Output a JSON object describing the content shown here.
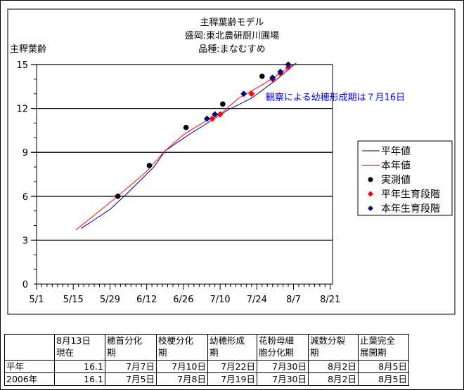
{
  "chart_data": {
    "type": "line",
    "title": [
      "主稈葉齢モデル",
      "盛岡:東北農研厨川圃場",
      "品種:まなむすめ"
    ],
    "ylabel": "主稈葉齢",
    "xlabel": "",
    "ylim": [
      0,
      15
    ],
    "yticks": [
      0,
      3,
      6,
      9,
      12,
      15
    ],
    "xticks": [
      "5/1",
      "5/15",
      "5/29",
      "6/12",
      "6/26",
      "7/10",
      "7/24",
      "8/7",
      "8/21"
    ],
    "grid": "horizontal major",
    "legend_placement": "right",
    "annotation": "観察による幼穂形成期は７月16日",
    "series": [
      {
        "name": "平年値",
        "kind": "line",
        "color": "#000080",
        "points": [
          [
            "5/18",
            3.8
          ],
          [
            "5/29",
            5.1
          ],
          [
            "6/4",
            6.1
          ],
          [
            "6/15",
            8.05
          ],
          [
            "6/19",
            9.1
          ],
          [
            "6/28",
            10.2
          ],
          [
            "7/6",
            11.1
          ],
          [
            "7/13",
            11.9
          ],
          [
            "7/22",
            12.7
          ],
          [
            "7/31",
            13.9
          ],
          [
            "8/6",
            14.8
          ],
          [
            "8/8",
            15.1
          ]
        ]
      },
      {
        "name": "本年値",
        "kind": "line",
        "color": "#ff0000",
        "points": [
          [
            "5/16",
            3.7
          ],
          [
            "6/1",
            6.0
          ],
          [
            "6/12",
            7.7
          ],
          [
            "6/19",
            9.1
          ],
          [
            "6/26",
            10.2
          ],
          [
            "7/5",
            11.2
          ],
          [
            "7/11",
            11.75
          ],
          [
            "7/17",
            12.7
          ],
          [
            "7/26",
            13.6
          ],
          [
            "8/7",
            15.0
          ],
          [
            "8/8",
            15.1
          ]
        ]
      },
      {
        "name": "実測値",
        "kind": "point",
        "shape": "circle",
        "color": "#000000",
        "points": [
          [
            "6/1",
            6.0
          ],
          [
            "6/13",
            8.1
          ],
          [
            "6/27",
            10.7
          ],
          [
            "7/11",
            12.3
          ],
          [
            "7/26",
            14.2
          ]
        ]
      },
      {
        "name": "平年生育段階",
        "kind": "point",
        "shape": "diamond",
        "color": "#ff0000",
        "points": [
          [
            "7/7",
            11.3
          ],
          [
            "7/10",
            11.6
          ],
          [
            "7/22",
            13.0
          ],
          [
            "7/30",
            14.0
          ],
          [
            "8/2",
            14.4
          ],
          [
            "8/5",
            14.8
          ]
        ]
      },
      {
        "name": "本年生育段階",
        "kind": "point",
        "shape": "diamond",
        "color": "#000080",
        "points": [
          [
            "7/5",
            11.3
          ],
          [
            "7/8",
            11.6
          ],
          [
            "7/19",
            13.0
          ],
          [
            "7/30",
            14.1
          ],
          [
            "8/2",
            14.5
          ],
          [
            "8/5",
            15.0
          ]
        ]
      }
    ]
  },
  "table": {
    "headers": [
      [
        "",
        ""
      ],
      [
        "8月13日",
        "現在"
      ],
      [
        "穂首分化",
        "期"
      ],
      [
        "枝梗分化",
        "期"
      ],
      [
        "幼穂形成",
        "期"
      ],
      [
        "花粉母細",
        "胞分化期"
      ],
      [
        "減数分裂",
        "期"
      ],
      [
        "止葉完全",
        "展開期"
      ]
    ],
    "rows": [
      [
        "平年",
        "16.1",
        "7月7日",
        "7月10日",
        "7月22日",
        "7月30日",
        "8月2日",
        "8月5日"
      ],
      [
        "2006年",
        "16.1",
        "7月5日",
        "7月8日",
        "7月19日",
        "7月30日",
        "8月2日",
        "8月5日"
      ]
    ]
  }
}
